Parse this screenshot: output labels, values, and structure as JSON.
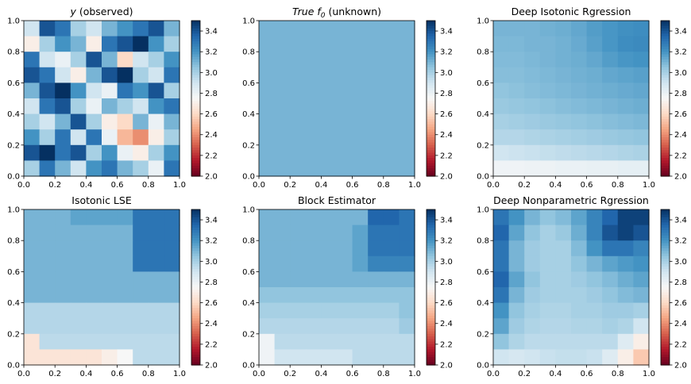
{
  "figure": {
    "type": "heatmap-grid",
    "rows": 2,
    "cols": 3
  },
  "colorbar": {
    "cmap": "RdBu",
    "ticks": [
      "2.0",
      "2.2",
      "2.4",
      "2.6",
      "2.8",
      "3.0",
      "3.2",
      "3.4"
    ],
    "range": [
      2.0,
      3.5
    ]
  },
  "axes_ticks": [
    "0.0",
    "0.2",
    "0.4",
    "0.6",
    "0.8",
    "1.0"
  ],
  "colors": {
    "dark_red": "#67001f",
    "red": "#d6604d",
    "light_red": "#f4a582",
    "white": "#f7f7f7",
    "light_blue": "#92c5de",
    "blue": "#4393c3",
    "dark_blue": "#053061"
  },
  "chart_data": [
    {
      "type": "heatmap",
      "title_var": "y",
      "title_rest": " (observed)",
      "xlabel": "",
      "ylabel": "",
      "xlim": [
        0,
        1
      ],
      "ylim": [
        0,
        1
      ],
      "grid": [
        [
          2.9,
          3.4,
          3.3,
          3.0,
          2.9,
          3.1,
          3.2,
          3.3,
          3.4,
          3.1
        ],
        [
          2.7,
          3.0,
          3.2,
          3.1,
          2.7,
          3.3,
          3.4,
          3.5,
          3.2,
          3.0
        ],
        [
          3.3,
          2.9,
          2.8,
          3.0,
          3.4,
          3.1,
          2.6,
          2.9,
          3.0,
          3.2
        ],
        [
          3.4,
          3.3,
          2.9,
          2.7,
          3.1,
          3.4,
          3.5,
          3.0,
          2.9,
          3.3
        ],
        [
          3.1,
          3.4,
          3.5,
          3.2,
          2.9,
          2.8,
          3.3,
          3.2,
          3.4,
          3.0
        ],
        [
          2.9,
          3.3,
          3.4,
          3.0,
          2.8,
          3.1,
          3.0,
          2.9,
          3.2,
          3.3
        ],
        [
          3.0,
          2.9,
          3.1,
          3.4,
          3.0,
          2.7,
          2.6,
          3.1,
          2.8,
          3.1
        ],
        [
          3.2,
          3.0,
          3.3,
          2.9,
          3.3,
          2.8,
          2.5,
          2.4,
          2.7,
          3.0
        ],
        [
          3.4,
          3.5,
          3.3,
          3.4,
          3.0,
          3.2,
          2.8,
          2.7,
          3.0,
          3.2
        ],
        [
          3.0,
          3.3,
          3.1,
          2.9,
          3.2,
          3.3,
          3.1,
          3.0,
          2.8,
          3.3
        ]
      ]
    },
    {
      "type": "heatmap",
      "title_var": "True f",
      "title_sub": "0",
      "title_rest": " (unknown)",
      "xlabel": "",
      "ylabel": "",
      "xlim": [
        0,
        1
      ],
      "ylim": [
        0,
        1
      ],
      "grid": [
        [
          3.1
        ]
      ]
    },
    {
      "type": "heatmap",
      "title": "Deep Isotonic Rgression",
      "xlabel": "",
      "ylabel": "",
      "xlim": [
        0,
        1
      ],
      "ylim": [
        0,
        1
      ],
      "grid": [
        [
          3.1,
          3.1,
          3.1,
          3.11,
          3.12,
          3.14,
          3.17,
          3.19,
          3.21,
          3.22
        ],
        [
          3.09,
          3.09,
          3.1,
          3.1,
          3.11,
          3.13,
          3.16,
          3.19,
          3.22,
          3.23
        ],
        [
          3.08,
          3.08,
          3.09,
          3.1,
          3.11,
          3.12,
          3.14,
          3.17,
          3.19,
          3.2
        ],
        [
          3.07,
          3.07,
          3.08,
          3.09,
          3.1,
          3.11,
          3.12,
          3.14,
          3.15,
          3.16
        ],
        [
          3.05,
          3.06,
          3.07,
          3.08,
          3.09,
          3.1,
          3.11,
          3.12,
          3.13,
          3.14
        ],
        [
          3.03,
          3.04,
          3.05,
          3.06,
          3.07,
          3.08,
          3.09,
          3.1,
          3.11,
          3.12
        ],
        [
          3.0,
          3.01,
          3.02,
          3.03,
          3.04,
          3.05,
          3.06,
          3.07,
          3.08,
          3.09
        ],
        [
          2.97,
          2.97,
          2.98,
          2.99,
          3.0,
          3.01,
          3.02,
          3.03,
          3.04,
          3.05
        ],
        [
          2.9,
          2.91,
          2.92,
          2.93,
          2.94,
          2.95,
          2.96,
          2.97,
          2.98,
          2.99
        ],
        [
          2.78,
          2.78,
          2.79,
          2.79,
          2.8,
          2.8,
          2.81,
          2.81,
          2.82,
          2.82
        ]
      ]
    },
    {
      "type": "heatmap",
      "title": "Isotonic LSE",
      "xlabel": "",
      "ylabel": "",
      "xlim": [
        0,
        1
      ],
      "ylim": [
        0,
        1
      ],
      "grid": [
        [
          3.1,
          3.1,
          3.1,
          3.15,
          3.15,
          3.15,
          3.15,
          3.3,
          3.3,
          3.3
        ],
        [
          3.1,
          3.1,
          3.1,
          3.1,
          3.1,
          3.1,
          3.1,
          3.3,
          3.3,
          3.3
        ],
        [
          3.1,
          3.1,
          3.1,
          3.1,
          3.1,
          3.1,
          3.1,
          3.3,
          3.3,
          3.3
        ],
        [
          3.1,
          3.1,
          3.1,
          3.1,
          3.1,
          3.1,
          3.1,
          3.3,
          3.3,
          3.3
        ],
        [
          3.1,
          3.1,
          3.1,
          3.1,
          3.1,
          3.1,
          3.1,
          3.1,
          3.1,
          3.1
        ],
        [
          3.1,
          3.1,
          3.1,
          3.1,
          3.1,
          3.1,
          3.1,
          3.1,
          3.1,
          3.1
        ],
        [
          2.97,
          2.97,
          2.97,
          2.97,
          2.97,
          2.97,
          2.97,
          2.97,
          2.97,
          2.97
        ],
        [
          2.97,
          2.97,
          2.97,
          2.97,
          2.97,
          2.97,
          2.97,
          2.97,
          2.97,
          2.97
        ],
        [
          2.65,
          2.95,
          2.95,
          2.95,
          2.95,
          2.95,
          2.95,
          2.95,
          2.95,
          2.95
        ],
        [
          2.65,
          2.65,
          2.65,
          2.65,
          2.65,
          2.7,
          2.75,
          2.95,
          2.95,
          2.95
        ]
      ]
    },
    {
      "type": "heatmap",
      "title": "Block Estimator",
      "xlabel": "",
      "ylabel": "",
      "xlim": [
        0,
        1
      ],
      "ylim": [
        0,
        1
      ],
      "grid": [
        [
          3.1,
          3.1,
          3.1,
          3.1,
          3.1,
          3.1,
          3.1,
          3.35,
          3.35,
          3.3
        ],
        [
          3.1,
          3.1,
          3.1,
          3.1,
          3.1,
          3.1,
          3.15,
          3.3,
          3.3,
          3.3
        ],
        [
          3.1,
          3.1,
          3.1,
          3.1,
          3.1,
          3.1,
          3.15,
          3.3,
          3.3,
          3.3
        ],
        [
          3.1,
          3.1,
          3.1,
          3.1,
          3.1,
          3.1,
          3.15,
          3.25,
          3.25,
          3.25
        ],
        [
          3.1,
          3.1,
          3.1,
          3.1,
          3.1,
          3.1,
          3.1,
          3.1,
          3.1,
          3.1
        ],
        [
          3.05,
          3.05,
          3.05,
          3.05,
          3.05,
          3.05,
          3.05,
          3.05,
          3.05,
          3.05
        ],
        [
          3.0,
          3.0,
          3.0,
          3.0,
          3.0,
          3.0,
          3.0,
          3.0,
          3.0,
          3.05
        ],
        [
          2.97,
          2.97,
          2.97,
          2.97,
          2.97,
          2.97,
          2.97,
          2.97,
          2.97,
          3.02
        ],
        [
          2.78,
          2.95,
          2.95,
          2.95,
          2.95,
          2.95,
          2.95,
          2.95,
          2.95,
          2.95
        ],
        [
          2.78,
          2.9,
          2.9,
          2.9,
          2.9,
          2.9,
          2.95,
          2.95,
          2.95,
          2.95
        ]
      ]
    },
    {
      "type": "heatmap",
      "title": "Deep Nonparametric Rgression",
      "xlabel": "",
      "ylabel": "",
      "xlim": [
        0,
        1
      ],
      "ylim": [
        0,
        1
      ],
      "grid": [
        [
          3.3,
          3.2,
          3.1,
          3.05,
          3.08,
          3.15,
          3.25,
          3.35,
          3.45,
          3.45
        ],
        [
          3.35,
          3.15,
          3.05,
          3.0,
          3.03,
          3.12,
          3.25,
          3.4,
          3.45,
          3.4
        ],
        [
          3.3,
          3.1,
          3.02,
          3.0,
          3.0,
          3.08,
          3.2,
          3.3,
          3.3,
          3.25
        ],
        [
          3.3,
          3.1,
          3.02,
          3.0,
          3.0,
          3.05,
          3.1,
          3.15,
          3.18,
          3.2
        ],
        [
          3.35,
          3.15,
          3.05,
          3.0,
          3.0,
          3.02,
          3.05,
          3.08,
          3.12,
          3.15
        ],
        [
          3.3,
          3.1,
          3.02,
          3.0,
          3.0,
          3.0,
          3.02,
          3.05,
          3.08,
          3.1
        ],
        [
          3.2,
          3.05,
          3.0,
          2.98,
          2.98,
          3.0,
          3.0,
          3.02,
          3.02,
          3.0
        ],
        [
          3.15,
          3.02,
          2.98,
          2.97,
          2.97,
          2.98,
          2.98,
          3.0,
          2.98,
          2.9
        ],
        [
          3.05,
          2.98,
          2.95,
          2.95,
          2.95,
          2.95,
          2.95,
          2.95,
          2.85,
          2.7
        ],
        [
          2.9,
          2.88,
          2.9,
          2.92,
          2.93,
          2.93,
          2.92,
          2.85,
          2.7,
          2.55
        ]
      ]
    }
  ]
}
